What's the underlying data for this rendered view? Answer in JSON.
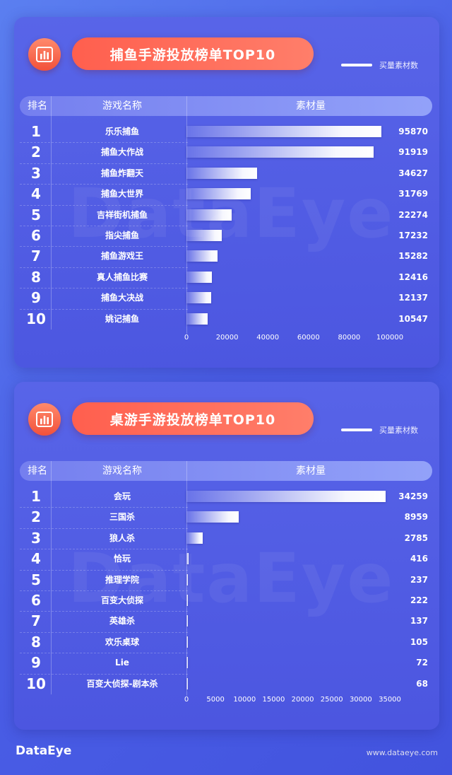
{
  "footer": {
    "logo": "DataEye",
    "url": "www.dataeye.com"
  },
  "watermark": "DataEye",
  "chart_data": [
    {
      "type": "bar",
      "title": "捕鱼手游投放榜单TOP10",
      "legend": "买量素材数",
      "headers": {
        "rank": "排名",
        "name": "游戏名称",
        "value": "素材量"
      },
      "ranks": [
        "1",
        "2",
        "3",
        "4",
        "5",
        "6",
        "7",
        "8",
        "9",
        "10"
      ],
      "categories": [
        "乐乐捕鱼",
        "捕鱼大作战",
        "捕鱼炸翻天",
        "捕鱼大世界",
        "吉祥街机捕鱼",
        "指尖捕鱼",
        "捕鱼游戏王",
        "真人捕鱼比赛",
        "捕鱼大决战",
        "姚记捕鱼"
      ],
      "values": [
        95870,
        91919,
        34627,
        31769,
        22274,
        17232,
        15282,
        12416,
        12137,
        10547
      ],
      "xticks": [
        0,
        20000,
        40000,
        60000,
        80000,
        100000
      ],
      "xlim": [
        0,
        100000
      ]
    },
    {
      "type": "bar",
      "title": "桌游手游投放榜单TOP10",
      "legend": "买量素材数",
      "headers": {
        "rank": "排名",
        "name": "游戏名称",
        "value": "素材量"
      },
      "ranks": [
        "1",
        "2",
        "3",
        "4",
        "5",
        "6",
        "7",
        "8",
        "9",
        "10"
      ],
      "categories": [
        "会玩",
        "三国杀",
        "狼人杀",
        "恰玩",
        "推理学院",
        "百变大侦探",
        "英雄杀",
        "欢乐桌球",
        "Lie",
        "百变大侦探-剧本杀"
      ],
      "values": [
        34259,
        8959,
        2785,
        416,
        237,
        222,
        137,
        105,
        72,
        68
      ],
      "xticks": [
        0,
        5000,
        10000,
        15000,
        20000,
        25000,
        30000,
        35000
      ],
      "xlim": [
        0,
        35000
      ]
    }
  ]
}
